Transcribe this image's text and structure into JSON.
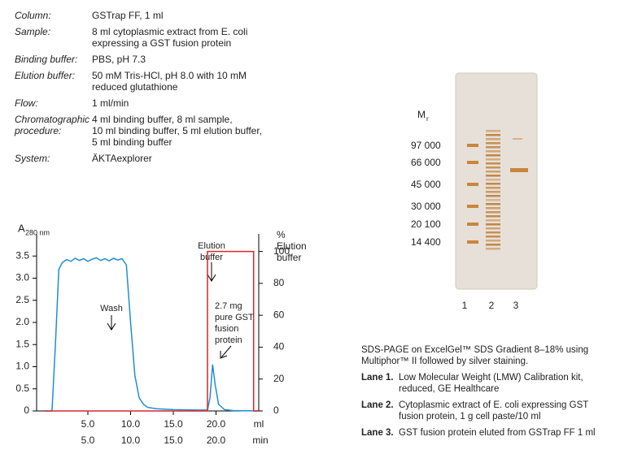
{
  "conditions": [
    {
      "label": [
        "Column:"
      ],
      "value": [
        "GSTrap FF, 1 ml"
      ]
    },
    {
      "label": [
        "Sample:"
      ],
      "value": [
        "8 ml cytoplasmic extract from E. coli",
        "expressing a GST fusion protein"
      ]
    },
    {
      "label": [
        "Binding buffer:"
      ],
      "value": [
        "PBS, pH 7.3"
      ]
    },
    {
      "label": [
        "Elution buffer:"
      ],
      "value": [
        "50 mM Tris-HCl, pH 8.0 with 10 mM",
        "reduced glutathione"
      ]
    },
    {
      "label": [
        "Flow:"
      ],
      "value": [
        "1 ml/min"
      ]
    },
    {
      "label": [
        "Chromatographic",
        "procedure:"
      ],
      "value": [
        "4 ml binding buffer, 8 ml sample,",
        "10 ml binding buffer, 5 ml elution buffer,",
        "5 ml binding buffer"
      ]
    },
    {
      "label": [
        "System:"
      ],
      "value": [
        "ÄKTAexplorer"
      ]
    }
  ],
  "chart_data": {
    "type": "line",
    "y_label": "A",
    "y_label_sub": "280 nm",
    "y2_label": [
      "%",
      "Elution",
      "buffer"
    ],
    "x_unit": "ml",
    "x2_unit": "min",
    "xlim": [
      -1,
      25
    ],
    "ylim": [
      0,
      4
    ],
    "y2lim": [
      0,
      111
    ],
    "xticks": [
      {
        "value": 5,
        "label": "5.0"
      },
      {
        "value": 10,
        "label": "10.0"
      },
      {
        "value": 15,
        "label": "15.0"
      },
      {
        "value": 20,
        "label": "20.0"
      }
    ],
    "x2ticks": [
      {
        "value": 5,
        "label": "5.0"
      },
      {
        "value": 10,
        "label": "10.0"
      },
      {
        "value": 15,
        "label": "15.0"
      },
      {
        "value": 20,
        "label": "20.0"
      }
    ],
    "yticks": [
      0,
      0.5,
      {
        "value": 1,
        "label": "1.0"
      },
      1.5,
      {
        "value": 2,
        "label": "2.0"
      },
      2.5,
      {
        "value": 3,
        "label": "3.0"
      },
      3.5
    ],
    "y2ticks": [
      0,
      20,
      40,
      60,
      80,
      100
    ],
    "series": [
      {
        "color": "#1f8fd0",
        "x": [
          0,
          0.8,
          1.2,
          1.6,
          2,
          2.5,
          3,
          3.5,
          4,
          4.5,
          5,
          5.5,
          6,
          6.5,
          7,
          7.5,
          8,
          8.5,
          9,
          9.5,
          10,
          10.5,
          11,
          11.5,
          12,
          13,
          15,
          18,
          19,
          19.3,
          19.6,
          19.9,
          20.3,
          21,
          22,
          25
        ],
        "values": [
          0,
          0,
          1.5,
          3.2,
          3.35,
          3.42,
          3.38,
          3.45,
          3.4,
          3.44,
          3.38,
          3.43,
          3.46,
          3.4,
          3.44,
          3.39,
          3.45,
          3.41,
          3.44,
          3.3,
          2.0,
          0.8,
          0.3,
          0.15,
          0.08,
          0.05,
          0.03,
          0.02,
          0.02,
          0.3,
          1.05,
          0.6,
          0.15,
          0.03,
          0.01,
          0
        ]
      },
      {
        "color": "#d8262e",
        "axis": "y2",
        "x": [
          0,
          19,
          19,
          24.4,
          24.4,
          25
        ],
        "values": [
          0,
          0,
          100,
          100,
          0,
          0
        ]
      }
    ],
    "annotations": [
      {
        "lines": [
          "Elution",
          "buffer"
        ]
      },
      {
        "lines": [
          "Wash"
        ]
      },
      {
        "lines": [
          "2.7 mg",
          "pure GST",
          "fusion",
          "protein"
        ]
      }
    ]
  },
  "gel": {
    "mr_label": "M",
    "mr_sub": "r",
    "markers": [
      "97 000",
      "66 000",
      "45 000",
      "30 000",
      "20 100",
      "14 400"
    ],
    "lanes": [
      "1",
      "2",
      "3"
    ]
  },
  "caption": {
    "text": "SDS-PAGE on ExcelGel™ SDS Gradient 8–18% using Multiphor™ II followed by silver staining.",
    "lanes": [
      {
        "label": "Lane 1.",
        "text": "Low Molecular Weight (LMW) Calibration kit, reduced, GE Healthcare"
      },
      {
        "label": "Lane 2.",
        "text": "Cytoplasmic extract of E. coli expressing GST fusion protein, 1 g cell paste/10 ml"
      },
      {
        "label": "Lane 3.",
        "text": "GST fusion protein eluted from GSTrap FF 1 ml"
      }
    ]
  }
}
